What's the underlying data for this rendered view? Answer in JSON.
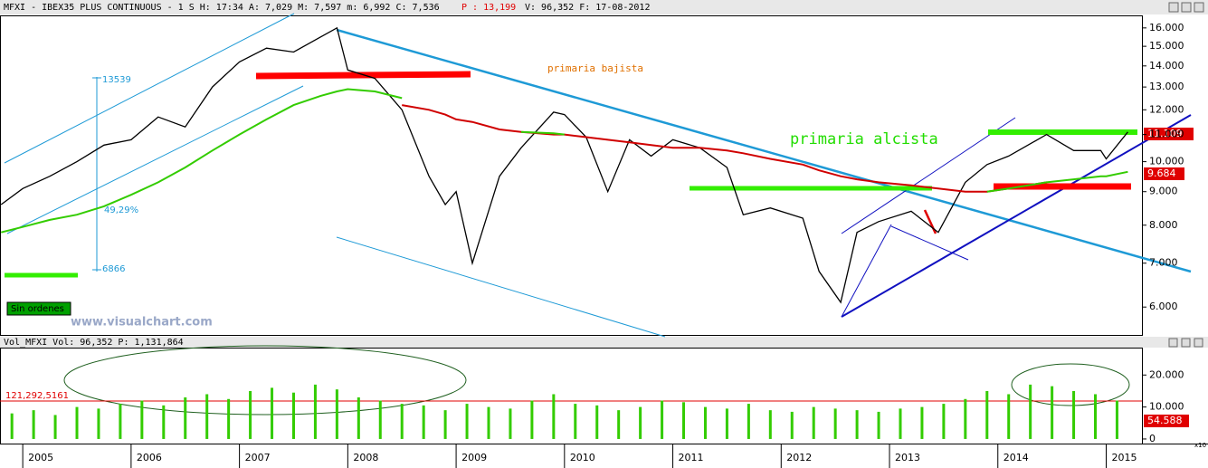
{
  "header": {
    "left": "MFXI - IBEX35 PLUS CONTINUOUS - 1 S H: 17:34 A: 7,029 M: 7,597 m: 6,992 C: 7,536",
    "p": "P : 13,199",
    "right": "V: 96,352 F: 17-08-2012"
  },
  "watermark": "www.visualchart.com",
  "status": "Sin ordenes",
  "chart_data": [
    {
      "type": "line",
      "annotations": [
        "primaria bajista",
        "primaria alcista",
        "13539",
        "6866",
        "49,29%",
        "11.109",
        "9.684"
      ],
      "x": [
        2004.8,
        2005,
        2005.25,
        2005.5,
        2005.75,
        2006,
        2006.25,
        2006.5,
        2006.75,
        2007,
        2007.25,
        2007.5,
        2007.75,
        2007.9,
        2008,
        2008.25,
        2008.5,
        2008.75,
        2008.9,
        2009,
        2009.15,
        2009.4,
        2009.6,
        2009.9,
        2010,
        2010.2,
        2010.4,
        2010.6,
        2010.8,
        2011,
        2011.25,
        2011.5,
        2011.65,
        2011.9,
        2012.2,
        2012.35,
        2012.55,
        2012.7,
        2012.9,
        2013.2,
        2013.45,
        2013.7,
        2013.9,
        2014.1,
        2014.45,
        2014.7,
        2014.95,
        2015,
        2015.2
      ],
      "series": [
        {
          "color": "#000000",
          "values": [
            8600,
            9100,
            9500,
            10000,
            10600,
            10800,
            11700,
            11300,
            13000,
            14200,
            14900,
            14700,
            15500,
            16000,
            13800,
            13400,
            12000,
            9500,
            8600,
            9000,
            7000,
            9500,
            10500,
            11900,
            11800,
            10900,
            9000,
            10800,
            10200,
            10800,
            10500,
            9800,
            8300,
            8500,
            8200,
            6800,
            6100,
            7800,
            8100,
            8400,
            7800,
            9300,
            9900,
            10200,
            11000,
            10400,
            10400,
            10100,
            11100
          ]
        },
        {
          "color": "#d00000",
          "values": [
            null,
            null,
            null,
            null,
            null,
            null,
            null,
            null,
            null,
            null,
            null,
            null,
            null,
            null,
            null,
            null,
            12200,
            12000,
            11800,
            11600,
            11500,
            11200,
            11100,
            11000,
            11000,
            10900,
            10800,
            10700,
            10600,
            10500,
            10500,
            10400,
            10300,
            10100,
            9900,
            9700,
            9500,
            9400,
            9300,
            9200,
            9100,
            9000,
            9000,
            9100,
            9300,
            null,
            null,
            null,
            null
          ]
        },
        {
          "color": "#33cc00",
          "values": [
            7800,
            7950,
            8150,
            8300,
            8550,
            8900,
            9300,
            9800,
            10400,
            11000,
            11600,
            12200,
            12600,
            12800,
            12900,
            12800,
            12500,
            null,
            null,
            null,
            null,
            null,
            11100,
            11050,
            11000,
            null,
            null,
            null,
            null,
            null,
            null,
            null,
            null,
            null,
            null,
            null,
            null,
            null,
            null,
            null,
            null,
            null,
            9000,
            9100,
            9300,
            9400,
            9500,
            9500,
            9650
          ]
        }
      ],
      "xlim": [
        2004.79,
        2015.33
      ],
      "ylim": [
        5440,
        16720
      ],
      "log_scale": true,
      "yticks": [
        {
          "value": 6000,
          "label": "6.000"
        },
        {
          "value": 7000,
          "label": "7.000"
        },
        {
          "value": 8000,
          "label": "8.000"
        },
        {
          "value": 9000,
          "label": "9.000"
        },
        {
          "value": 10000,
          "label": "10.000"
        },
        {
          "value": 11000,
          "label": "11.000"
        },
        {
          "value": 12000,
          "label": "12.000"
        },
        {
          "value": 13000,
          "label": "13.000"
        },
        {
          "value": 14000,
          "label": "14.000"
        },
        {
          "value": 15000,
          "label": "15.000"
        },
        {
          "value": 16000,
          "label": "16.000"
        }
      ]
    },
    {
      "type": "bar",
      "title": "Vol_MFXI Vol: 96,352 P: 1,131,864",
      "annotations": [
        "121,292,5161",
        "54.588",
        "x10"
      ],
      "color": "#33cc00",
      "x": [
        2004.9,
        2005.1,
        2005.3,
        2005.5,
        2005.7,
        2005.9,
        2006.1,
        2006.3,
        2006.5,
        2006.7,
        2006.9,
        2007.1,
        2007.3,
        2007.5,
        2007.7,
        2007.9,
        2008.1,
        2008.3,
        2008.5,
        2008.7,
        2008.9,
        2009.1,
        2009.3,
        2009.5,
        2009.7,
        2009.9,
        2010.1,
        2010.3,
        2010.5,
        2010.7,
        2010.9,
        2011.1,
        2011.3,
        2011.5,
        2011.7,
        2011.9,
        2012.1,
        2012.3,
        2012.5,
        2012.7,
        2012.9,
        2013.1,
        2013.3,
        2013.5,
        2013.7,
        2013.9,
        2014.1,
        2014.3,
        2014.5,
        2014.7,
        2014.9,
        2015.1
      ],
      "values": [
        8000,
        9000,
        7500,
        10000,
        9500,
        11000,
        12000,
        10500,
        13000,
        14000,
        12500,
        15000,
        16000,
        14500,
        17000,
        15500,
        13000,
        12000,
        11000,
        10500,
        9000,
        11000,
        10000,
        9500,
        12000,
        14000,
        11000,
        10500,
        9000,
        10000,
        12000,
        11500,
        10000,
        9500,
        11000,
        9000,
        8500,
        10000,
        9500,
        9000,
        8500,
        9500,
        10000,
        11000,
        12500,
        15000,
        14000,
        17000,
        16500,
        15000,
        14000,
        12000
      ],
      "xlim": [
        2004.79,
        2015.33
      ],
      "ylim": [
        -1430,
        28570
      ],
      "yticks": [
        0,
        {
          "value": 10000,
          "label": "10.000"
        },
        {
          "value": 20000,
          "label": "20.000"
        }
      ],
      "xticks": [
        2005,
        2006,
        2007,
        2008,
        2009,
        2010,
        2011,
        2012,
        2013,
        2014,
        2015
      ]
    }
  ]
}
